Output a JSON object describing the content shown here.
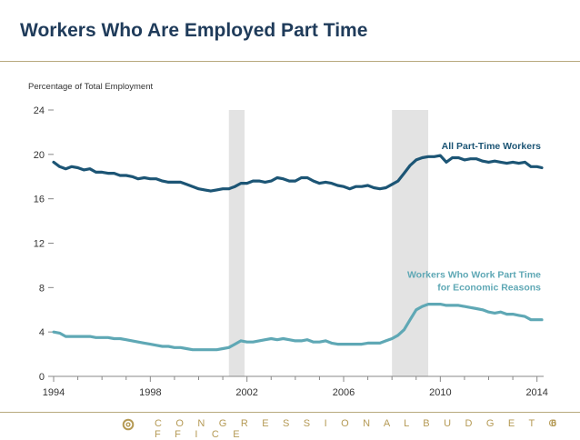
{
  "slide": {
    "title": "Workers Who Are Employed Part Time",
    "footer_org": "C O N G R E S S I O N A L   B U D G E T   O F F I C E",
    "page_number": "6",
    "logo_icon": "cbo-seal-icon"
  },
  "colors": {
    "title": "#1f3b5a",
    "all_part_time": "#1c5575",
    "economic_reasons": "#5fa8b5",
    "recession": "#e3e3e3",
    "accent": "#b59a55"
  },
  "chart_data": {
    "type": "line",
    "title": "",
    "ylabel": "Percentage of Total Employment",
    "xlabel": "",
    "xlim": [
      1994,
      2014.2
    ],
    "ylim": [
      0,
      24
    ],
    "xticks": [
      1994,
      1998,
      2002,
      2006,
      2010,
      2014
    ],
    "xtick_labels": [
      "1994",
      "1998",
      "2002",
      "2006",
      "2010",
      "2014"
    ],
    "yticks": [
      0,
      4,
      8,
      12,
      16,
      20,
      24
    ],
    "ytick_labels": [
      "0",
      "4",
      "8",
      "12",
      "16",
      "20",
      "24"
    ],
    "recession_periods": [
      [
        2001.25,
        2001.9
      ],
      [
        2008.0,
        2009.5
      ]
    ],
    "series": [
      {
        "name": "All Part-Time Workers",
        "label_lines": [
          "All Part-Time Workers"
        ],
        "points": [
          [
            1994.0,
            19.3
          ],
          [
            1994.25,
            18.9
          ],
          [
            1994.5,
            18.7
          ],
          [
            1994.75,
            18.9
          ],
          [
            1995.0,
            18.8
          ],
          [
            1995.25,
            18.6
          ],
          [
            1995.5,
            18.7
          ],
          [
            1995.75,
            18.4
          ],
          [
            1996.0,
            18.4
          ],
          [
            1996.25,
            18.3
          ],
          [
            1996.5,
            18.3
          ],
          [
            1996.75,
            18.1
          ],
          [
            1997.0,
            18.1
          ],
          [
            1997.25,
            18.0
          ],
          [
            1997.5,
            17.8
          ],
          [
            1997.75,
            17.9
          ],
          [
            1998.0,
            17.8
          ],
          [
            1998.25,
            17.8
          ],
          [
            1998.5,
            17.6
          ],
          [
            1998.75,
            17.5
          ],
          [
            1999.0,
            17.5
          ],
          [
            1999.25,
            17.5
          ],
          [
            1999.5,
            17.3
          ],
          [
            1999.75,
            17.1
          ],
          [
            2000.0,
            16.9
          ],
          [
            2000.25,
            16.8
          ],
          [
            2000.5,
            16.7
          ],
          [
            2000.75,
            16.8
          ],
          [
            2001.0,
            16.9
          ],
          [
            2001.25,
            16.9
          ],
          [
            2001.5,
            17.1
          ],
          [
            2001.75,
            17.4
          ],
          [
            2002.0,
            17.4
          ],
          [
            2002.25,
            17.6
          ],
          [
            2002.5,
            17.6
          ],
          [
            2002.75,
            17.5
          ],
          [
            2003.0,
            17.6
          ],
          [
            2003.25,
            17.9
          ],
          [
            2003.5,
            17.8
          ],
          [
            2003.75,
            17.6
          ],
          [
            2004.0,
            17.6
          ],
          [
            2004.25,
            17.9
          ],
          [
            2004.5,
            17.9
          ],
          [
            2004.75,
            17.6
          ],
          [
            2005.0,
            17.4
          ],
          [
            2005.25,
            17.5
          ],
          [
            2005.5,
            17.4
          ],
          [
            2005.75,
            17.2
          ],
          [
            2006.0,
            17.1
          ],
          [
            2006.25,
            16.9
          ],
          [
            2006.5,
            17.1
          ],
          [
            2006.75,
            17.1
          ],
          [
            2007.0,
            17.2
          ],
          [
            2007.25,
            17.0
          ],
          [
            2007.5,
            16.9
          ],
          [
            2007.75,
            17.0
          ],
          [
            2008.0,
            17.3
          ],
          [
            2008.25,
            17.6
          ],
          [
            2008.5,
            18.3
          ],
          [
            2008.75,
            19.0
          ],
          [
            2009.0,
            19.5
          ],
          [
            2009.25,
            19.7
          ],
          [
            2009.5,
            19.8
          ],
          [
            2009.75,
            19.8
          ],
          [
            2010.0,
            19.9
          ],
          [
            2010.25,
            19.3
          ],
          [
            2010.5,
            19.7
          ],
          [
            2010.75,
            19.7
          ],
          [
            2011.0,
            19.5
          ],
          [
            2011.25,
            19.6
          ],
          [
            2011.5,
            19.6
          ],
          [
            2011.75,
            19.4
          ],
          [
            2012.0,
            19.3
          ],
          [
            2012.25,
            19.4
          ],
          [
            2012.5,
            19.3
          ],
          [
            2012.75,
            19.2
          ],
          [
            2013.0,
            19.3
          ],
          [
            2013.25,
            19.2
          ],
          [
            2013.5,
            19.3
          ],
          [
            2013.75,
            18.9
          ],
          [
            2014.0,
            18.9
          ],
          [
            2014.2,
            18.8
          ]
        ]
      },
      {
        "name": "Workers Who Work Part Time for Economic Reasons",
        "label_lines": [
          "Workers Who Work Part Time",
          "for Economic Reasons"
        ],
        "points": [
          [
            1994.0,
            4.0
          ],
          [
            1994.25,
            3.9
          ],
          [
            1994.5,
            3.6
          ],
          [
            1994.75,
            3.6
          ],
          [
            1995.0,
            3.6
          ],
          [
            1995.25,
            3.6
          ],
          [
            1995.5,
            3.6
          ],
          [
            1995.75,
            3.5
          ],
          [
            1996.0,
            3.5
          ],
          [
            1996.25,
            3.5
          ],
          [
            1996.5,
            3.4
          ],
          [
            1996.75,
            3.4
          ],
          [
            1997.0,
            3.3
          ],
          [
            1997.25,
            3.2
          ],
          [
            1997.5,
            3.1
          ],
          [
            1997.75,
            3.0
          ],
          [
            1998.0,
            2.9
          ],
          [
            1998.25,
            2.8
          ],
          [
            1998.5,
            2.7
          ],
          [
            1998.75,
            2.7
          ],
          [
            1999.0,
            2.6
          ],
          [
            1999.25,
            2.6
          ],
          [
            1999.5,
            2.5
          ],
          [
            1999.75,
            2.4
          ],
          [
            2000.0,
            2.4
          ],
          [
            2000.25,
            2.4
          ],
          [
            2000.5,
            2.4
          ],
          [
            2000.75,
            2.4
          ],
          [
            2001.0,
            2.5
          ],
          [
            2001.25,
            2.6
          ],
          [
            2001.5,
            2.9
          ],
          [
            2001.75,
            3.2
          ],
          [
            2002.0,
            3.1
          ],
          [
            2002.25,
            3.1
          ],
          [
            2002.5,
            3.2
          ],
          [
            2002.75,
            3.3
          ],
          [
            2003.0,
            3.4
          ],
          [
            2003.25,
            3.3
          ],
          [
            2003.5,
            3.4
          ],
          [
            2003.75,
            3.3
          ],
          [
            2004.0,
            3.2
          ],
          [
            2004.25,
            3.2
          ],
          [
            2004.5,
            3.3
          ],
          [
            2004.75,
            3.1
          ],
          [
            2005.0,
            3.1
          ],
          [
            2005.25,
            3.2
          ],
          [
            2005.5,
            3.0
          ],
          [
            2005.75,
            2.9
          ],
          [
            2006.0,
            2.9
          ],
          [
            2006.25,
            2.9
          ],
          [
            2006.5,
            2.9
          ],
          [
            2006.75,
            2.9
          ],
          [
            2007.0,
            3.0
          ],
          [
            2007.25,
            3.0
          ],
          [
            2007.5,
            3.0
          ],
          [
            2007.75,
            3.2
          ],
          [
            2008.0,
            3.4
          ],
          [
            2008.25,
            3.7
          ],
          [
            2008.5,
            4.2
          ],
          [
            2008.75,
            5.1
          ],
          [
            2009.0,
            6.0
          ],
          [
            2009.25,
            6.3
          ],
          [
            2009.5,
            6.5
          ],
          [
            2009.75,
            6.5
          ],
          [
            2010.0,
            6.5
          ],
          [
            2010.25,
            6.4
          ],
          [
            2010.5,
            6.4
          ],
          [
            2010.75,
            6.4
          ],
          [
            2011.0,
            6.3
          ],
          [
            2011.25,
            6.2
          ],
          [
            2011.5,
            6.1
          ],
          [
            2011.75,
            6.0
          ],
          [
            2012.0,
            5.8
          ],
          [
            2012.25,
            5.7
          ],
          [
            2012.5,
            5.8
          ],
          [
            2012.75,
            5.6
          ],
          [
            2013.0,
            5.6
          ],
          [
            2013.25,
            5.5
          ],
          [
            2013.5,
            5.4
          ],
          [
            2013.75,
            5.1
          ],
          [
            2014.0,
            5.1
          ],
          [
            2014.2,
            5.1
          ]
        ]
      }
    ]
  }
}
